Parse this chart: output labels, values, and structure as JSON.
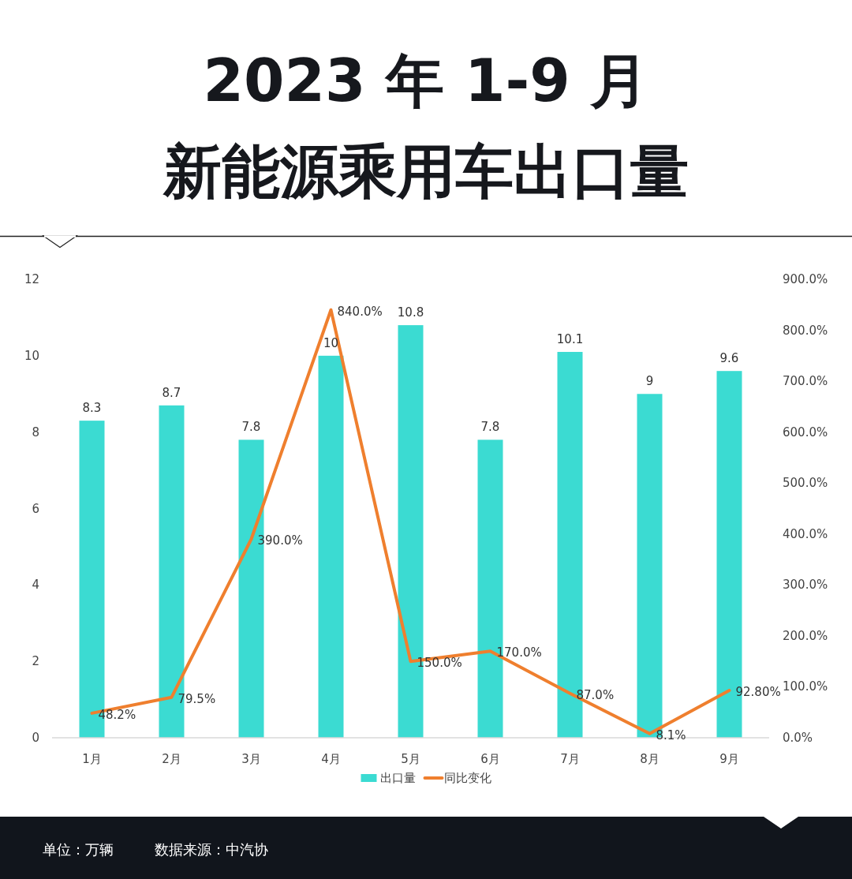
{
  "chart_data": {
    "type": "bar",
    "title": "2023 年 1-9 月",
    "subtitle": "新能源乘用车出口量",
    "categories": [
      "1月",
      "2月",
      "3月",
      "4月",
      "5月",
      "6月",
      "7月",
      "8月",
      "9月"
    ],
    "series": [
      {
        "name": "出口量",
        "color": "#3bdbd2",
        "values": [
          8.3,
          8.7,
          7.8,
          10,
          10.8,
          7.8,
          10.1,
          9,
          9.6
        ],
        "value_labels": [
          "8.3",
          "8.7",
          "7.8",
          "10",
          "10.8",
          "7.8",
          "10.1",
          "9",
          "9.6"
        ]
      },
      {
        "name": "同比变化",
        "type": "line",
        "axis": "y2",
        "color": "#ef7f2e",
        "values": [
          48.2,
          79.5,
          390,
          840,
          150,
          170,
          87,
          8.1,
          92.8
        ],
        "value_labels": [
          "48.2%",
          "79.5%",
          "390.0%",
          "840.0%",
          "150.0%",
          "170.0%",
          "87.0%",
          "8.1%",
          "92.80%"
        ]
      }
    ],
    "ylim": [
      0,
      12
    ],
    "yticks": [
      0,
      2,
      4,
      6,
      8,
      10,
      12
    ],
    "y2lim": [
      0,
      900
    ],
    "y2ticks": [
      {
        "value": 0,
        "label": "0.0%"
      },
      {
        "value": 100,
        "label": "100.0%"
      },
      {
        "value": 200,
        "label": "200.0%"
      },
      {
        "value": 300,
        "label": "300.0%"
      },
      {
        "value": 400,
        "label": "400.0%"
      },
      {
        "value": 500,
        "label": "500.0%"
      },
      {
        "value": 600,
        "label": "600.0%"
      },
      {
        "value": 700,
        "label": "700.0%"
      },
      {
        "value": 800,
        "label": "800.0%"
      },
      {
        "value": 900,
        "label": "900.0%"
      }
    ],
    "legend": "bottom",
    "marker": "none",
    "line_style": "solid",
    "annotations": [
      "单位：万辆",
      "数据来源：中汽协"
    ]
  }
}
